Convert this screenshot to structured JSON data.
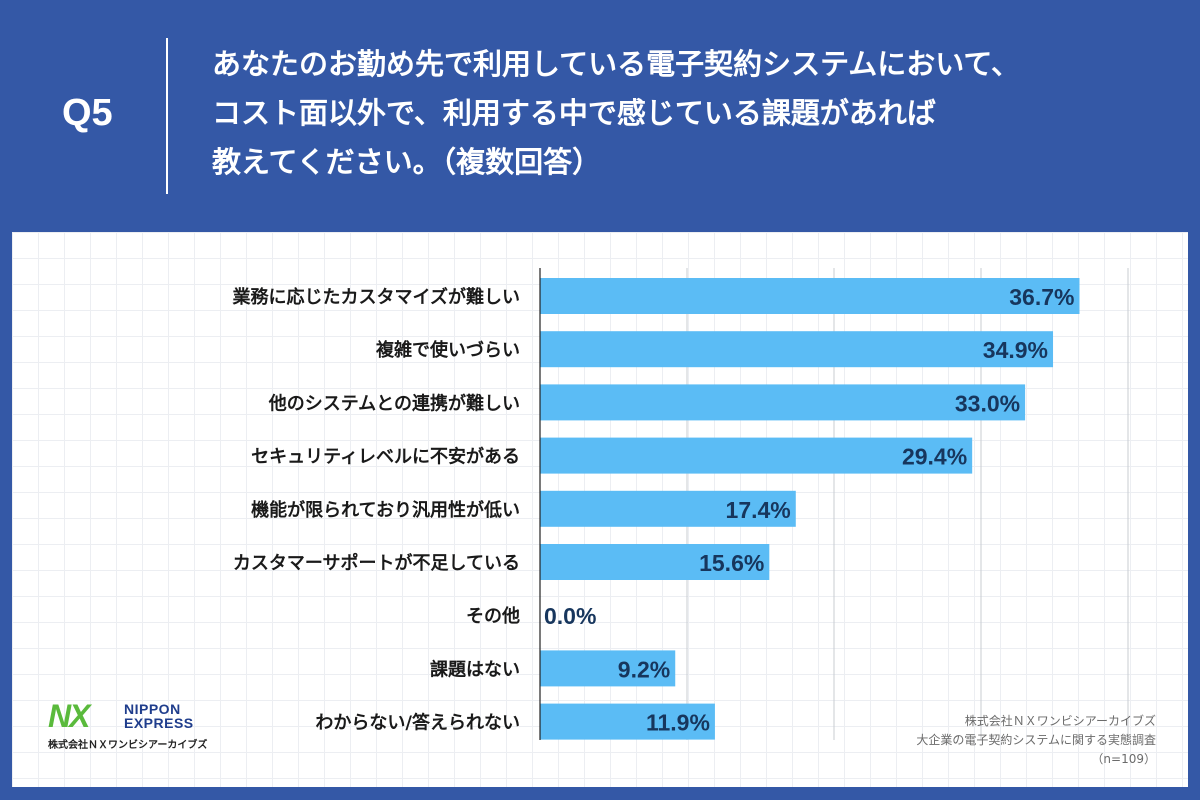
{
  "header": {
    "question_number": "Q5",
    "question_lines": [
      "あなたのお勤め先で利用している電子契約システムにおいて、",
      "コスト面以外で、利用する中で感じている課題があれば",
      "教えてください。（複数回答）"
    ]
  },
  "chart_data": {
    "type": "bar",
    "orientation": "horizontal",
    "title": "",
    "categories": [
      "業務に応じたカスタマイズが難しい",
      "複雑で使いづらい",
      "他のシステムとの連携が難しい",
      "セキュリティレベルに不安がある",
      "機能が限られており汎用性が低い",
      "カスタマーサポートが不足している",
      "その他",
      "課題はない",
      "わからない/答えられない"
    ],
    "values": [
      36.7,
      34.9,
      33.0,
      29.4,
      17.4,
      15.6,
      0.0,
      9.2,
      11.9
    ],
    "value_labels": [
      "36.7%",
      "34.9%",
      "33.0%",
      "29.4%",
      "17.4%",
      "15.6%",
      "0.0%",
      "9.2%",
      "11.9%"
    ],
    "xlim": [
      0,
      40
    ],
    "grid": true,
    "bar_color": "#5bbcf5",
    "value_label_color": "#17365d"
  },
  "logo": {
    "mark": "NX",
    "name_line1": "NIPPON",
    "name_line2": "EXPRESS",
    "company": "株式会社ＮＸワンビシアーカイブズ"
  },
  "source": {
    "line1": "株式会社ＮＸワンビシアーカイブズ",
    "line2": "大企業の電子契約システムに関する実態調査",
    "line3": "（n=109）"
  }
}
